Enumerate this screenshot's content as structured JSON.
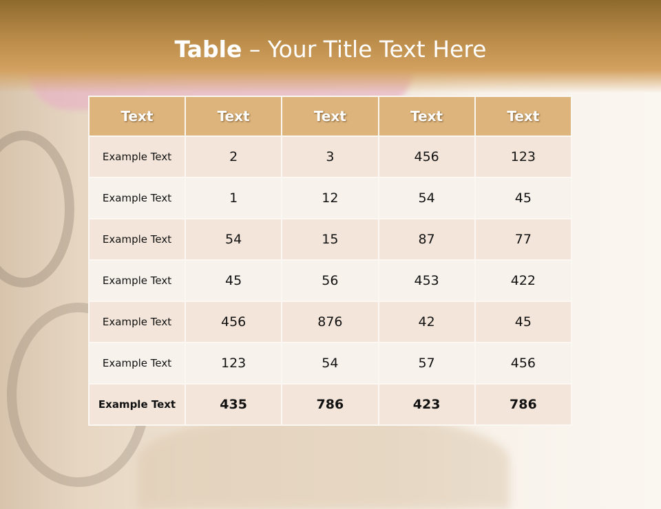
{
  "title": {
    "bold": "Table",
    "rest": " – Your Title Text Here"
  },
  "table": {
    "headers": [
      "Text",
      "Text",
      "Text",
      "Text",
      "Text"
    ],
    "rows": [
      [
        "Example Text",
        "2",
        "3",
        "456",
        "123"
      ],
      [
        "Example Text",
        "1",
        "12",
        "54",
        "45"
      ],
      [
        "Example Text",
        "54",
        "15",
        "87",
        "77"
      ],
      [
        "Example Text",
        "45",
        "56",
        "453",
        "422"
      ],
      [
        "Example Text",
        "456",
        "876",
        "42",
        "45"
      ],
      [
        "Example Text",
        "123",
        "54",
        "57",
        "456"
      ],
      [
        "Example Text",
        "435",
        "786",
        "423",
        "786"
      ]
    ]
  },
  "colors": {
    "header": "#ddb47c",
    "row_odd": "#f3e5d9",
    "row_even": "#f7f2ec",
    "title_band": "#b88a48"
  }
}
